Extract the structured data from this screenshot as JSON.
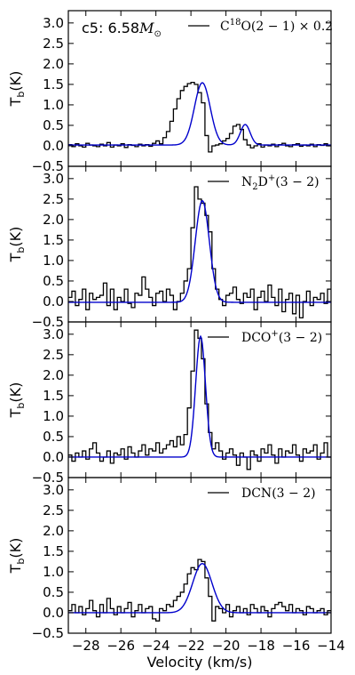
{
  "chart_data": {
    "type": "line",
    "xlabel": "Velocity (km/s)",
    "xlim": [
      -29,
      -14
    ],
    "xticks": [
      -28,
      -26,
      -24,
      -22,
      -20,
      -18,
      -16,
      -14
    ],
    "xtick_labels": [
      "−28",
      "−26",
      "−24",
      "−22",
      "−20",
      "−18",
      "−16",
      "−14"
    ],
    "ylim": [
      -0.5,
      3.3
    ],
    "yticks": [
      -0.5,
      0.0,
      0.5,
      1.0,
      1.5,
      2.0,
      2.5,
      3.0
    ],
    "ytick_labels": [
      "−0.5",
      "0.0",
      "0.5",
      "1.0",
      "1.5",
      "2.0",
      "2.5",
      "3.0"
    ],
    "ylabel": "T",
    "ylabel_sub": "b",
    "ylabel_unit": "(K)",
    "annotation": {
      "text": "c5:  6.58",
      "unit": "M",
      "unit_sub": "⊙"
    },
    "colors": {
      "observed": "#000000",
      "fit": "#0000cc"
    },
    "panels": [
      {
        "legend": {
          "main": "C",
          "sup": "18",
          "rest": "O(2 − 1) × 0.2"
        },
        "fit": {
          "components": [
            {
              "amp": 1.52,
              "center": -21.35,
              "sigma": 0.45
            },
            {
              "amp": 0.5,
              "center": -18.9,
              "sigma": 0.28
            }
          ],
          "baseline": 0.02
        },
        "x": [
          -29.0,
          -28.8,
          -28.6,
          -28.4,
          -28.2,
          -28.0,
          -27.8,
          -27.6,
          -27.4,
          -27.2,
          -27.0,
          -26.8,
          -26.6,
          -26.4,
          -26.2,
          -26.0,
          -25.8,
          -25.6,
          -25.4,
          -25.2,
          -25.0,
          -24.8,
          -24.6,
          -24.4,
          -24.2,
          -24.0,
          -23.8,
          -23.6,
          -23.4,
          -23.2,
          -23.0,
          -22.8,
          -22.6,
          -22.4,
          -22.2,
          -22.0,
          -21.8,
          -21.6,
          -21.4,
          -21.2,
          -21.0,
          -20.8,
          -20.6,
          -20.4,
          -20.2,
          -20.0,
          -19.8,
          -19.6,
          -19.4,
          -19.2,
          -19.0,
          -18.8,
          -18.6,
          -18.4,
          -18.2,
          -18.0,
          -17.8,
          -17.6,
          -17.4,
          -17.2,
          -17.0,
          -16.8,
          -16.6,
          -16.4,
          -16.2,
          -16.0,
          -15.8,
          -15.6,
          -15.4,
          -15.2,
          -15.0,
          -14.8,
          -14.6,
          -14.4,
          -14.2
        ],
        "y": [
          0.03,
          -0.02,
          0.05,
          0.0,
          -0.03,
          0.06,
          0.02,
          0.0,
          -0.02,
          0.04,
          0.0,
          0.08,
          -0.03,
          0.02,
          0.0,
          0.05,
          -0.04,
          0.03,
          0.01,
          -0.02,
          0.04,
          0.0,
          0.03,
          -0.01,
          0.06,
          0.12,
          0.05,
          0.2,
          0.35,
          0.6,
          0.9,
          1.15,
          1.35,
          1.45,
          1.52,
          1.55,
          1.5,
          1.3,
          1.05,
          0.25,
          -0.15,
          0.0,
          0.02,
          0.05,
          0.12,
          0.18,
          0.3,
          0.48,
          0.52,
          0.4,
          0.15,
          0.02,
          -0.05,
          0.0,
          0.05,
          -0.03,
          0.02,
          0.0,
          0.04,
          -0.02,
          0.03,
          0.06,
          0.0,
          -0.02,
          0.03,
          0.05,
          -0.01,
          0.02,
          0.0,
          0.04,
          -0.02,
          0.03,
          0.01,
          0.05,
          0.0
        ]
      },
      {
        "legend": {
          "main": "N",
          "sub": "2",
          "main2": "D",
          "sup": "+",
          "rest": "(3 − 2)"
        },
        "fit": {
          "components": [
            {
              "amp": 2.48,
              "center": -21.35,
              "sigma": 0.4
            }
          ],
          "baseline": -0.02
        },
        "x": [
          -29.0,
          -28.8,
          -28.6,
          -28.4,
          -28.2,
          -28.0,
          -27.8,
          -27.6,
          -27.4,
          -27.2,
          -27.0,
          -26.8,
          -26.6,
          -26.4,
          -26.2,
          -26.0,
          -25.8,
          -25.6,
          -25.4,
          -25.2,
          -25.0,
          -24.8,
          -24.6,
          -24.4,
          -24.2,
          -24.0,
          -23.8,
          -23.6,
          -23.4,
          -23.2,
          -23.0,
          -22.8,
          -22.6,
          -22.4,
          -22.2,
          -22.0,
          -21.8,
          -21.6,
          -21.4,
          -21.2,
          -21.0,
          -20.8,
          -20.6,
          -20.4,
          -20.2,
          -20.0,
          -19.8,
          -19.6,
          -19.4,
          -19.2,
          -19.0,
          -18.8,
          -18.6,
          -18.4,
          -18.2,
          -18.0,
          -17.8,
          -17.6,
          -17.4,
          -17.2,
          -17.0,
          -16.8,
          -16.6,
          -16.4,
          -16.2,
          -16.0,
          -15.8,
          -15.6,
          -15.4,
          -15.2,
          -15.0,
          -14.8,
          -14.6,
          -14.4,
          -14.2
        ],
        "y": [
          0.1,
          0.25,
          -0.1,
          0.05,
          0.3,
          -0.2,
          0.2,
          0.05,
          0.1,
          0.15,
          0.45,
          -0.1,
          0.3,
          -0.2,
          0.1,
          0.0,
          0.3,
          -0.05,
          -0.15,
          0.2,
          0.15,
          0.6,
          0.3,
          0.1,
          -0.1,
          0.2,
          0.25,
          0.0,
          0.3,
          0.15,
          -0.2,
          0.0,
          0.2,
          0.5,
          0.8,
          1.8,
          2.8,
          2.5,
          2.4,
          2.1,
          1.7,
          0.8,
          0.3,
          0.05,
          -0.1,
          0.15,
          0.2,
          0.35,
          0.05,
          -0.05,
          0.2,
          0.1,
          0.3,
          -0.2,
          0.1,
          0.25,
          0.0,
          0.4,
          0.1,
          -0.1,
          0.3,
          -0.25,
          0.05,
          0.2,
          -0.3,
          0.15,
          -0.4,
          0.0,
          0.25,
          -0.1,
          0.1,
          0.05,
          0.2,
          -0.05,
          0.3
        ]
      },
      {
        "legend": {
          "main": "DCO",
          "sup": "+",
          "rest": "(3 − 2)"
        },
        "fit": {
          "components": [
            {
              "amp": 2.95,
              "center": -21.45,
              "sigma": 0.28
            }
          ],
          "baseline": 0.0
        },
        "x": [
          -29.0,
          -28.8,
          -28.6,
          -28.4,
          -28.2,
          -28.0,
          -27.8,
          -27.6,
          -27.4,
          -27.2,
          -27.0,
          -26.8,
          -26.6,
          -26.4,
          -26.2,
          -26.0,
          -25.8,
          -25.6,
          -25.4,
          -25.2,
          -25.0,
          -24.8,
          -24.6,
          -24.4,
          -24.2,
          -24.0,
          -23.8,
          -23.6,
          -23.4,
          -23.2,
          -23.0,
          -22.8,
          -22.6,
          -22.4,
          -22.2,
          -22.0,
          -21.8,
          -21.6,
          -21.4,
          -21.2,
          -21.0,
          -20.8,
          -20.6,
          -20.4,
          -20.2,
          -20.0,
          -19.8,
          -19.6,
          -19.4,
          -19.2,
          -19.0,
          -18.8,
          -18.6,
          -18.4,
          -18.2,
          -18.0,
          -17.8,
          -17.6,
          -17.4,
          -17.2,
          -17.0,
          -16.8,
          -16.6,
          -16.4,
          -16.2,
          -16.0,
          -15.8,
          -15.6,
          -15.4,
          -15.2,
          -15.0,
          -14.8,
          -14.6,
          -14.4,
          -14.2
        ],
        "y": [
          0.05,
          -0.1,
          0.1,
          0.0,
          0.15,
          -0.05,
          0.2,
          0.35,
          0.1,
          -0.1,
          0.0,
          0.15,
          -0.15,
          0.1,
          0.05,
          0.2,
          -0.05,
          0.25,
          0.1,
          0.0,
          0.15,
          0.3,
          0.05,
          0.2,
          0.15,
          0.35,
          0.1,
          0.2,
          0.3,
          0.4,
          0.25,
          0.5,
          0.3,
          0.55,
          1.2,
          2.1,
          3.1,
          2.9,
          2.4,
          1.3,
          0.6,
          0.2,
          0.35,
          0.15,
          -0.05,
          0.1,
          0.2,
          0.05,
          -0.2,
          0.1,
          0.0,
          -0.3,
          0.15,
          0.05,
          -0.1,
          0.2,
          0.1,
          0.3,
          0.05,
          -0.15,
          0.2,
          0.0,
          0.15,
          0.1,
          0.3,
          0.05,
          -0.1,
          0.2,
          0.1,
          0.15,
          0.3,
          -0.05,
          0.1,
          0.35,
          0.0
        ]
      },
      {
        "legend": {
          "main": "DCN",
          "rest": "(3 − 2)"
        },
        "fit": {
          "components": [
            {
              "amp": 1.2,
              "center": -21.35,
              "sigma": 0.55
            }
          ],
          "baseline": 0.0
        },
        "x": [
          -29.0,
          -28.8,
          -28.6,
          -28.4,
          -28.2,
          -28.0,
          -27.8,
          -27.6,
          -27.4,
          -27.2,
          -27.0,
          -26.8,
          -26.6,
          -26.4,
          -26.2,
          -26.0,
          -25.8,
          -25.6,
          -25.4,
          -25.2,
          -25.0,
          -24.8,
          -24.6,
          -24.4,
          -24.2,
          -24.0,
          -23.8,
          -23.6,
          -23.4,
          -23.2,
          -23.0,
          -22.8,
          -22.6,
          -22.4,
          -22.2,
          -22.0,
          -21.8,
          -21.6,
          -21.4,
          -21.2,
          -21.0,
          -20.8,
          -20.6,
          -20.4,
          -20.2,
          -20.0,
          -19.8,
          -19.6,
          -19.4,
          -19.2,
          -19.0,
          -18.8,
          -18.6,
          -18.4,
          -18.2,
          -18.0,
          -17.8,
          -17.6,
          -17.4,
          -17.2,
          -17.0,
          -16.8,
          -16.6,
          -16.4,
          -16.2,
          -16.0,
          -15.8,
          -15.6,
          -15.4,
          -15.2,
          -15.0,
          -14.8,
          -14.6,
          -14.4,
          -14.2
        ],
        "y": [
          0.05,
          0.2,
          0.0,
          0.15,
          -0.05,
          0.1,
          0.3,
          0.05,
          -0.1,
          0.2,
          0.0,
          0.35,
          0.1,
          -0.05,
          0.15,
          0.0,
          0.1,
          0.25,
          -0.1,
          0.05,
          0.2,
          0.0,
          0.1,
          0.15,
          -0.15,
          -0.2,
          0.1,
          0.05,
          0.2,
          0.15,
          0.3,
          0.4,
          0.5,
          0.7,
          0.95,
          1.1,
          1.05,
          1.3,
          1.25,
          0.85,
          0.4,
          -0.2,
          0.15,
          0.1,
          0.0,
          0.2,
          -0.1,
          0.05,
          0.15,
          0.0,
          0.1,
          -0.05,
          0.2,
          0.1,
          0.0,
          0.15,
          0.05,
          -0.1,
          0.1,
          0.2,
          0.25,
          0.15,
          0.05,
          0.2,
          0.0,
          0.1,
          0.05,
          -0.05,
          0.15,
          0.1,
          0.0,
          0.05,
          0.1,
          -0.05,
          0.05
        ]
      }
    ]
  }
}
